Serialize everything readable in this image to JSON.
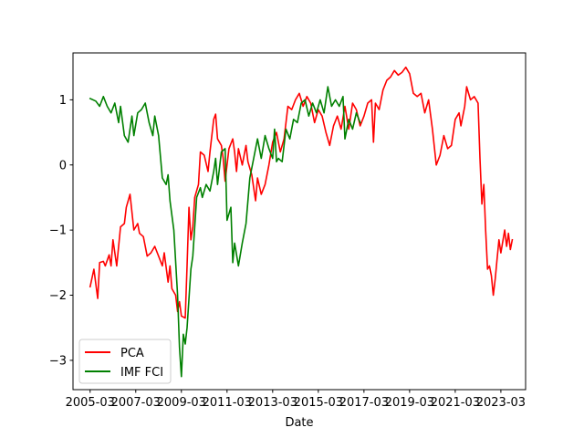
{
  "chart_data": {
    "type": "line",
    "xlabel": "Date",
    "x_ticks": [
      "2005-03",
      "2007-03",
      "2009-03",
      "2011-03",
      "2013-03",
      "2015-03",
      "2017-03",
      "2019-03",
      "2021-03",
      "2023-03"
    ],
    "y_ticks": [
      -3,
      -2,
      -1,
      0,
      1
    ],
    "ylim": [
      -3.45,
      1.72
    ],
    "xlim": [
      "2004-06",
      "2024-04"
    ],
    "legend_position": "lower left",
    "grid": false,
    "series": [
      {
        "name": "PCA",
        "color": "#ff0000",
        "points": [
          [
            "2005-03",
            -1.87
          ],
          [
            "2005-05",
            -1.6
          ],
          [
            "2005-07",
            -2.05
          ],
          [
            "2005-08",
            -1.5
          ],
          [
            "2005-10",
            -1.48
          ],
          [
            "2005-11",
            -1.55
          ],
          [
            "2006-01",
            -1.38
          ],
          [
            "2006-02",
            -1.55
          ],
          [
            "2006-03",
            -1.15
          ],
          [
            "2006-05",
            -1.55
          ],
          [
            "2006-07",
            -0.95
          ],
          [
            "2006-09",
            -0.9
          ],
          [
            "2006-10",
            -0.65
          ],
          [
            "2006-12",
            -0.45
          ],
          [
            "2007-02",
            -1.0
          ],
          [
            "2007-04",
            -0.9
          ],
          [
            "2007-05",
            -1.05
          ],
          [
            "2007-07",
            -1.1
          ],
          [
            "2007-09",
            -1.4
          ],
          [
            "2007-11",
            -1.35
          ],
          [
            "2008-01",
            -1.25
          ],
          [
            "2008-03",
            -1.4
          ],
          [
            "2008-05",
            -1.55
          ],
          [
            "2008-06",
            -1.35
          ],
          [
            "2008-08",
            -1.8
          ],
          [
            "2008-09",
            -1.55
          ],
          [
            "2008-10",
            -1.9
          ],
          [
            "2008-12",
            -2.0
          ],
          [
            "2009-01",
            -2.25
          ],
          [
            "2009-02",
            -2.1
          ],
          [
            "2009-03",
            -2.32
          ],
          [
            "2009-05",
            -2.35
          ],
          [
            "2009-06",
            -1.55
          ],
          [
            "2009-07",
            -0.65
          ],
          [
            "2009-08",
            -1.15
          ],
          [
            "2009-09",
            -0.95
          ],
          [
            "2009-10",
            -0.5
          ],
          [
            "2009-12",
            -0.3
          ],
          [
            "2010-01",
            0.2
          ],
          [
            "2010-03",
            0.15
          ],
          [
            "2010-05",
            -0.1
          ],
          [
            "2010-06",
            0.2
          ],
          [
            "2010-08",
            0.7
          ],
          [
            "2010-09",
            0.78
          ],
          [
            "2010-10",
            0.4
          ],
          [
            "2010-12",
            0.3
          ],
          [
            "2011-01",
            0.1
          ],
          [
            "2011-02",
            -0.25
          ],
          [
            "2011-04",
            0.25
          ],
          [
            "2011-06",
            0.4
          ],
          [
            "2011-07",
            0.2
          ],
          [
            "2011-08",
            -0.1
          ],
          [
            "2011-09",
            0.25
          ],
          [
            "2011-11",
            0.0
          ],
          [
            "2012-01",
            0.3
          ],
          [
            "2012-02",
            0.05
          ],
          [
            "2012-04",
            -0.15
          ],
          [
            "2012-06",
            -0.55
          ],
          [
            "2012-07",
            -0.2
          ],
          [
            "2012-09",
            -0.45
          ],
          [
            "2012-11",
            -0.3
          ],
          [
            "2013-01",
            0.0
          ],
          [
            "2013-03",
            0.35
          ],
          [
            "2013-05",
            0.5
          ],
          [
            "2013-07",
            0.2
          ],
          [
            "2013-09",
            0.4
          ],
          [
            "2013-11",
            0.9
          ],
          [
            "2014-01",
            0.85
          ],
          [
            "2014-03",
            1.0
          ],
          [
            "2014-05",
            1.1
          ],
          [
            "2014-07",
            0.9
          ],
          [
            "2014-09",
            1.05
          ],
          [
            "2014-11",
            0.95
          ],
          [
            "2015-01",
            0.65
          ],
          [
            "2015-03",
            0.85
          ],
          [
            "2015-05",
            0.75
          ],
          [
            "2015-07",
            0.5
          ],
          [
            "2015-09",
            0.3
          ],
          [
            "2015-11",
            0.6
          ],
          [
            "2016-01",
            0.75
          ],
          [
            "2016-03",
            0.55
          ],
          [
            "2016-05",
            0.9
          ],
          [
            "2016-07",
            0.55
          ],
          [
            "2016-09",
            0.95
          ],
          [
            "2016-11",
            0.85
          ],
          [
            "2017-01",
            0.6
          ],
          [
            "2017-03",
            0.75
          ],
          [
            "2017-05",
            0.95
          ],
          [
            "2017-07",
            1.0
          ],
          [
            "2017-08",
            0.35
          ],
          [
            "2017-09",
            0.95
          ],
          [
            "2017-11",
            0.85
          ],
          [
            "2018-01",
            1.15
          ],
          [
            "2018-03",
            1.3
          ],
          [
            "2018-05",
            1.35
          ],
          [
            "2018-07",
            1.45
          ],
          [
            "2018-09",
            1.38
          ],
          [
            "2018-11",
            1.42
          ],
          [
            "2019-01",
            1.5
          ],
          [
            "2019-03",
            1.4
          ],
          [
            "2019-05",
            1.1
          ],
          [
            "2019-07",
            1.05
          ],
          [
            "2019-09",
            1.1
          ],
          [
            "2019-11",
            0.8
          ],
          [
            "2020-01",
            1.0
          ],
          [
            "2020-03",
            0.55
          ],
          [
            "2020-05",
            0.0
          ],
          [
            "2020-07",
            0.15
          ],
          [
            "2020-09",
            0.45
          ],
          [
            "2020-11",
            0.25
          ],
          [
            "2021-01",
            0.3
          ],
          [
            "2021-03",
            0.7
          ],
          [
            "2021-05",
            0.8
          ],
          [
            "2021-06",
            0.6
          ],
          [
            "2021-08",
            0.9
          ],
          [
            "2021-09",
            1.2
          ],
          [
            "2021-11",
            1.0
          ],
          [
            "2022-01",
            1.05
          ],
          [
            "2022-03",
            0.95
          ],
          [
            "2022-04",
            0.1
          ],
          [
            "2022-05",
            -0.6
          ],
          [
            "2022-06",
            -0.3
          ],
          [
            "2022-07",
            -1.0
          ],
          [
            "2022-08",
            -1.6
          ],
          [
            "2022-09",
            -1.55
          ],
          [
            "2022-10",
            -1.7
          ],
          [
            "2022-11",
            -2.0
          ],
          [
            "2022-12",
            -1.75
          ],
          [
            "2023-01",
            -1.45
          ],
          [
            "2023-02",
            -1.15
          ],
          [
            "2023-03",
            -1.35
          ],
          [
            "2023-05",
            -1.0
          ],
          [
            "2023-06",
            -1.25
          ],
          [
            "2023-07",
            -1.05
          ],
          [
            "2023-08",
            -1.3
          ],
          [
            "2023-09",
            -1.15
          ]
        ]
      },
      {
        "name": "IMF FCI",
        "color": "#008000",
        "points": [
          [
            "2005-03",
            1.02
          ],
          [
            "2005-06",
            0.98
          ],
          [
            "2005-08",
            0.9
          ],
          [
            "2005-10",
            1.05
          ],
          [
            "2005-12",
            0.9
          ],
          [
            "2006-02",
            0.8
          ],
          [
            "2006-04",
            0.95
          ],
          [
            "2006-06",
            0.65
          ],
          [
            "2006-07",
            0.9
          ],
          [
            "2006-09",
            0.45
          ],
          [
            "2006-11",
            0.35
          ],
          [
            "2007-01",
            0.75
          ],
          [
            "2007-02",
            0.45
          ],
          [
            "2007-04",
            0.8
          ],
          [
            "2007-06",
            0.85
          ],
          [
            "2007-08",
            0.95
          ],
          [
            "2007-10",
            0.65
          ],
          [
            "2007-12",
            0.45
          ],
          [
            "2008-01",
            0.75
          ],
          [
            "2008-03",
            0.45
          ],
          [
            "2008-05",
            -0.2
          ],
          [
            "2008-07",
            -0.3
          ],
          [
            "2008-08",
            -0.15
          ],
          [
            "2008-09",
            -0.55
          ],
          [
            "2008-11",
            -1.0
          ],
          [
            "2009-01",
            -2.0
          ],
          [
            "2009-02",
            -2.8
          ],
          [
            "2009-03",
            -3.25
          ],
          [
            "2009-04",
            -2.6
          ],
          [
            "2009-05",
            -2.75
          ],
          [
            "2009-06",
            -2.5
          ],
          [
            "2009-08",
            -1.6
          ],
          [
            "2009-09",
            -1.4
          ],
          [
            "2009-11",
            -0.5
          ],
          [
            "2010-01",
            -0.35
          ],
          [
            "2010-02",
            -0.5
          ],
          [
            "2010-04",
            -0.3
          ],
          [
            "2010-06",
            -0.4
          ],
          [
            "2010-08",
            -0.1
          ],
          [
            "2010-09",
            0.1
          ],
          [
            "2010-10",
            -0.3
          ],
          [
            "2010-12",
            0.2
          ],
          [
            "2011-02",
            0.25
          ],
          [
            "2011-03",
            -0.85
          ],
          [
            "2011-05",
            -0.65
          ],
          [
            "2011-06",
            -1.5
          ],
          [
            "2011-07",
            -1.2
          ],
          [
            "2011-09",
            -1.55
          ],
          [
            "2011-11",
            -1.2
          ],
          [
            "2012-01",
            -0.9
          ],
          [
            "2012-03",
            -0.2
          ],
          [
            "2012-05",
            0.1
          ],
          [
            "2012-07",
            0.4
          ],
          [
            "2012-09",
            0.1
          ],
          [
            "2012-11",
            0.45
          ],
          [
            "2013-01",
            0.25
          ],
          [
            "2013-03",
            0.1
          ],
          [
            "2013-04",
            0.55
          ],
          [
            "2013-05",
            0.05
          ],
          [
            "2013-06",
            0.1
          ],
          [
            "2013-08",
            0.05
          ],
          [
            "2013-10",
            0.55
          ],
          [
            "2013-12",
            0.4
          ],
          [
            "2014-02",
            0.7
          ],
          [
            "2014-04",
            0.65
          ],
          [
            "2014-06",
            0.95
          ],
          [
            "2014-08",
            1.0
          ],
          [
            "2014-10",
            0.75
          ],
          [
            "2014-12",
            0.95
          ],
          [
            "2015-02",
            0.8
          ],
          [
            "2015-04",
            1.0
          ],
          [
            "2015-06",
            0.8
          ],
          [
            "2015-08",
            1.2
          ],
          [
            "2015-10",
            0.9
          ],
          [
            "2015-12",
            1.0
          ],
          [
            "2016-02",
            0.9
          ],
          [
            "2016-04",
            1.05
          ],
          [
            "2016-05",
            0.4
          ],
          [
            "2016-07",
            0.7
          ],
          [
            "2016-09",
            0.55
          ],
          [
            "2016-11",
            0.8
          ],
          [
            "2017-01",
            0.65
          ]
        ]
      }
    ]
  }
}
